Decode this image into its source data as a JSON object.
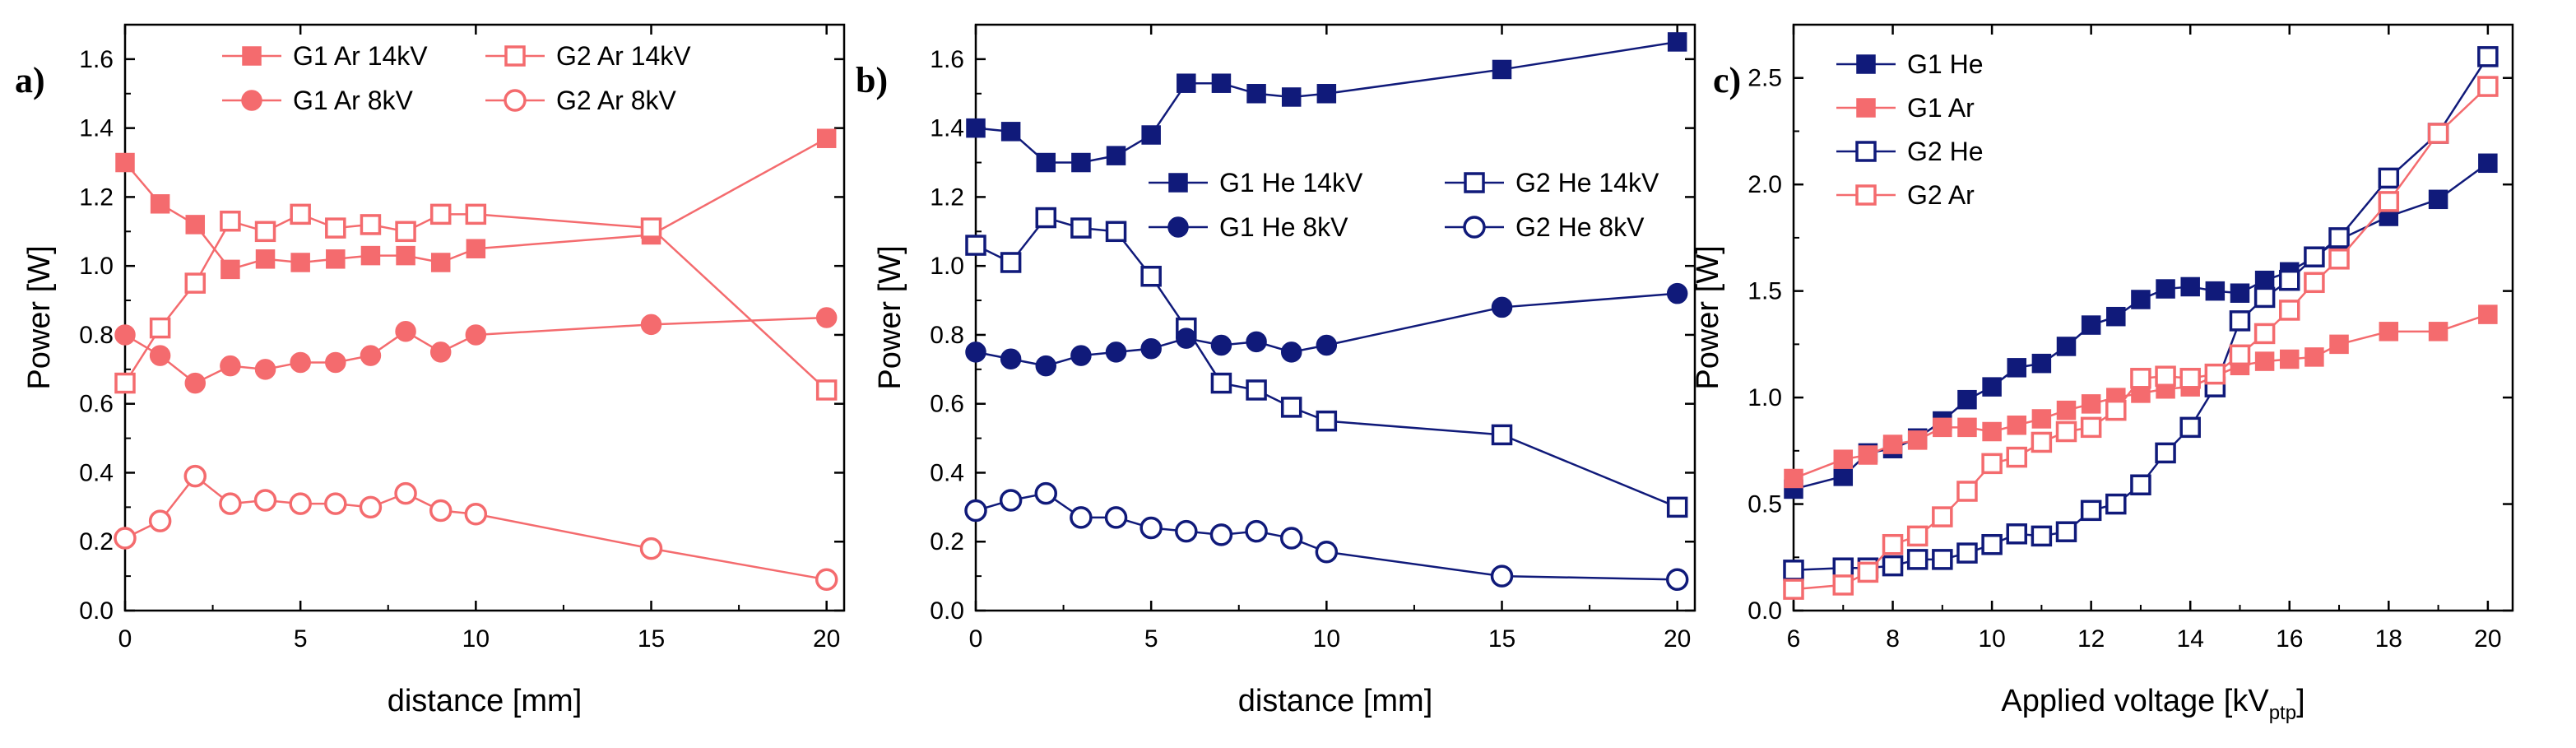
{
  "chart_data": [
    {
      "type": "line",
      "panel_label": "a)",
      "xlabel": "distance [mm]",
      "ylabel": "Power [W]",
      "xlim": [
        0,
        20.5
      ],
      "ylim": [
        0,
        1.7
      ],
      "xticks": [
        0,
        5,
        10,
        15,
        20
      ],
      "yticks": [
        0.0,
        0.2,
        0.4,
        0.6,
        0.8,
        1.0,
        1.2,
        1.4,
        1.6
      ],
      "ytick_decimals": 1,
      "grid": false,
      "legend_position": "top-center",
      "legend_columns": 2,
      "series": [
        {
          "name": "G1 Ar 14kV",
          "color": "#f46b6e",
          "marker": "square",
          "filled": true,
          "x": [
            0,
            1,
            2,
            3,
            4,
            5,
            6,
            7,
            8,
            9,
            10,
            15,
            20
          ],
          "y": [
            1.3,
            1.18,
            1.12,
            0.99,
            1.02,
            1.01,
            1.02,
            1.03,
            1.03,
            1.01,
            1.05,
            1.09,
            1.37
          ]
        },
        {
          "name": "G2 Ar 14kV",
          "color": "#f46b6e",
          "marker": "square",
          "filled": false,
          "x": [
            0,
            1,
            2,
            3,
            4,
            5,
            6,
            7,
            8,
            9,
            10,
            15,
            20
          ],
          "y": [
            0.66,
            0.82,
            0.95,
            1.13,
            1.1,
            1.15,
            1.11,
            1.12,
            1.1,
            1.15,
            1.15,
            1.11,
            0.64
          ]
        },
        {
          "name": "G1 Ar 8kV",
          "color": "#f46b6e",
          "marker": "circle",
          "filled": true,
          "x": [
            0,
            1,
            2,
            3,
            4,
            5,
            6,
            7,
            8,
            9,
            10,
            15,
            20
          ],
          "y": [
            0.8,
            0.74,
            0.66,
            0.71,
            0.7,
            0.72,
            0.72,
            0.74,
            0.81,
            0.75,
            0.8,
            0.83,
            0.85
          ]
        },
        {
          "name": "G2 Ar 8kV",
          "color": "#f46b6e",
          "marker": "circle",
          "filled": false,
          "x": [
            0,
            1,
            2,
            3,
            4,
            5,
            6,
            7,
            8,
            9,
            10,
            15,
            20
          ],
          "y": [
            0.21,
            0.26,
            0.39,
            0.31,
            0.32,
            0.31,
            0.31,
            0.3,
            0.34,
            0.29,
            0.28,
            0.18,
            0.09
          ]
        }
      ]
    },
    {
      "type": "line",
      "panel_label": "b)",
      "xlabel": "distance [mm]",
      "ylabel": "Power [W]",
      "xlim": [
        0,
        20.5
      ],
      "ylim": [
        0,
        1.7
      ],
      "xticks": [
        0,
        5,
        10,
        15,
        20
      ],
      "yticks": [
        0.0,
        0.2,
        0.4,
        0.6,
        0.8,
        1.0,
        1.2,
        1.4,
        1.6
      ],
      "ytick_decimals": 1,
      "grid": false,
      "legend_position": "middle-right",
      "legend_columns": 2,
      "series": [
        {
          "name": "G1 He 14kV",
          "color": "#101a7a",
          "marker": "square",
          "filled": true,
          "x": [
            0,
            1,
            2,
            3,
            4,
            5,
            6,
            7,
            8,
            9,
            10,
            15,
            20
          ],
          "y": [
            1.4,
            1.39,
            1.3,
            1.3,
            1.32,
            1.38,
            1.53,
            1.53,
            1.5,
            1.49,
            1.5,
            1.57,
            1.65
          ]
        },
        {
          "name": "G2 He 14kV",
          "color": "#101a7a",
          "marker": "square",
          "filled": false,
          "x": [
            0,
            1,
            2,
            3,
            4,
            5,
            6,
            7,
            8,
            9,
            10,
            15,
            20
          ],
          "y": [
            1.06,
            1.01,
            1.14,
            1.11,
            1.1,
            0.97,
            0.82,
            0.66,
            0.64,
            0.59,
            0.55,
            0.51,
            0.3
          ]
        },
        {
          "name": "G1 He 8kV",
          "color": "#101a7a",
          "marker": "circle",
          "filled": true,
          "x": [
            0,
            1,
            2,
            3,
            4,
            5,
            6,
            7,
            8,
            9,
            10,
            15,
            20
          ],
          "y": [
            0.75,
            0.73,
            0.71,
            0.74,
            0.75,
            0.76,
            0.79,
            0.77,
            0.78,
            0.75,
            0.77,
            0.88,
            0.92
          ]
        },
        {
          "name": "G2 He 8kV",
          "color": "#101a7a",
          "marker": "circle",
          "filled": false,
          "x": [
            0,
            1,
            2,
            3,
            4,
            5,
            6,
            7,
            8,
            9,
            10,
            15,
            20
          ],
          "y": [
            0.29,
            0.32,
            0.34,
            0.27,
            0.27,
            0.24,
            0.23,
            0.22,
            0.23,
            0.21,
            0.17,
            0.1,
            0.09
          ]
        }
      ]
    },
    {
      "type": "line",
      "panel_label": "c)",
      "xlabel": "Applied voltage [kV",
      "xlabel_subscript": "ptp",
      "xlabel_suffix": "]",
      "ylabel": "Power [W]",
      "xlim": [
        6,
        20.5
      ],
      "ylim": [
        0,
        2.75
      ],
      "xticks": [
        6,
        8,
        10,
        12,
        14,
        16,
        18,
        20
      ],
      "yticks": [
        0.0,
        0.5,
        1.0,
        1.5,
        2.0,
        2.5
      ],
      "ytick_decimals": 1,
      "grid": false,
      "legend_position": "top-left",
      "legend_columns": 1,
      "series": [
        {
          "name": "G1 He",
          "color": "#101a7a",
          "marker": "square",
          "filled": true,
          "x": [
            6,
            7,
            7.5,
            8,
            8.5,
            9,
            9.5,
            10,
            10.5,
            11,
            11.5,
            12,
            12.5,
            13,
            13.5,
            14,
            14.5,
            15,
            15.5,
            16,
            16.5,
            17,
            18,
            19,
            20
          ],
          "y": [
            0.57,
            0.63,
            0.74,
            0.76,
            0.81,
            0.89,
            0.99,
            1.05,
            1.14,
            1.16,
            1.24,
            1.34,
            1.38,
            1.46,
            1.51,
            1.52,
            1.5,
            1.49,
            1.55,
            1.59,
            1.66,
            1.74,
            1.85,
            1.93,
            2.1
          ]
        },
        {
          "name": "G1 Ar",
          "color": "#f46b6e",
          "marker": "square",
          "filled": true,
          "x": [
            6,
            7,
            7.5,
            8,
            8.5,
            9,
            9.5,
            10,
            10.5,
            11,
            11.5,
            12,
            12.5,
            13,
            13.5,
            14,
            14.5,
            15,
            15.5,
            16,
            16.5,
            17,
            18,
            19,
            20
          ],
          "y": [
            0.62,
            0.71,
            0.73,
            0.78,
            0.8,
            0.86,
            0.86,
            0.84,
            0.87,
            0.9,
            0.94,
            0.97,
            1.0,
            1.02,
            1.04,
            1.05,
            1.1,
            1.15,
            1.17,
            1.18,
            1.19,
            1.25,
            1.31,
            1.31,
            1.39
          ]
        },
        {
          "name": "G2 He",
          "color": "#101a7a",
          "marker": "square",
          "filled": false,
          "x": [
            6,
            7,
            7.5,
            8,
            8.5,
            9,
            9.5,
            10,
            10.5,
            11,
            11.5,
            12,
            12.5,
            13,
            13.5,
            14,
            14.5,
            15,
            15.5,
            16,
            16.5,
            17,
            18,
            19,
            20
          ],
          "y": [
            0.19,
            0.2,
            0.2,
            0.21,
            0.24,
            0.24,
            0.27,
            0.31,
            0.36,
            0.35,
            0.37,
            0.47,
            0.5,
            0.59,
            0.74,
            0.86,
            1.05,
            1.36,
            1.47,
            1.55,
            1.66,
            1.75,
            2.03,
            2.24,
            2.6
          ]
        },
        {
          "name": "G2 Ar",
          "color": "#f46b6e",
          "marker": "square",
          "filled": false,
          "x": [
            6,
            7,
            7.5,
            8,
            8.5,
            9,
            9.5,
            10,
            10.5,
            11,
            11.5,
            12,
            12.5,
            13,
            13.5,
            14,
            14.5,
            15,
            15.5,
            16,
            16.5,
            17,
            18,
            19,
            20
          ],
          "y": [
            0.1,
            0.12,
            0.18,
            0.31,
            0.35,
            0.44,
            0.56,
            0.69,
            0.72,
            0.79,
            0.84,
            0.86,
            0.94,
            1.09,
            1.1,
            1.09,
            1.11,
            1.2,
            1.3,
            1.41,
            1.54,
            1.65,
            1.92,
            2.24,
            2.46
          ]
        }
      ]
    }
  ]
}
